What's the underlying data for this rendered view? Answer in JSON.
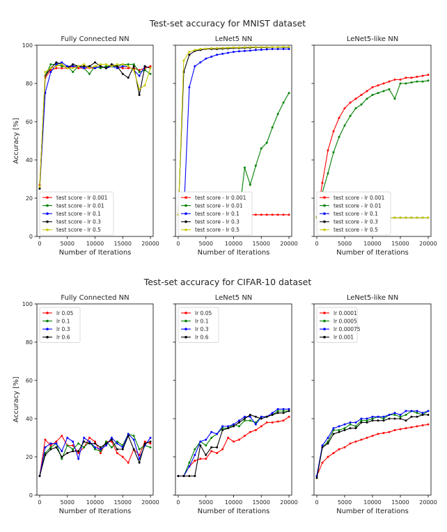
{
  "figure": {
    "mnist_title": "Test-set accuracy for MNIST dataset",
    "cifar_title": "Test-set accuracy for CIFAR-10 dataset"
  },
  "chart_data": [
    {
      "type": "line",
      "group": "mnist",
      "title": "Fully Connected NN",
      "xlabel": "Number of Iterations",
      "ylabel": "Accuracy [%]",
      "xlim": [
        -500,
        20500
      ],
      "ylim": [
        0,
        100
      ],
      "xticks": [
        0,
        5000,
        10000,
        15000,
        20000
      ],
      "yticks": [
        0,
        20,
        40,
        60,
        80,
        100
      ],
      "legend_position": "bottom-left",
      "x": [
        0,
        1000,
        2000,
        3000,
        4000,
        5000,
        6000,
        7000,
        8000,
        9000,
        10000,
        11000,
        12000,
        13000,
        14000,
        15000,
        16000,
        17000,
        18000,
        19000,
        20000
      ],
      "series": [
        {
          "name": "test score - lr 0.001",
          "color": "#ff0000",
          "values": [
            27,
            83,
            87,
            88,
            88,
            88,
            89,
            88,
            88,
            88,
            88,
            89,
            88,
            89,
            89,
            88,
            88,
            88,
            87,
            88,
            89
          ]
        },
        {
          "name": "test score - lr 0.01",
          "color": "#008000",
          "values": [
            26,
            84,
            90,
            90,
            89,
            89,
            86,
            89,
            88,
            85,
            89,
            88,
            89,
            89,
            89,
            90,
            90,
            90,
            86,
            87,
            85
          ]
        },
        {
          "name": "test score - lr 0.1",
          "color": "#0000ff",
          "values": [
            25,
            75,
            86,
            90,
            91,
            89,
            89,
            89,
            88,
            89,
            88,
            89,
            88,
            89,
            88,
            89,
            89,
            87,
            84,
            89,
            88
          ]
        },
        {
          "name": "test score - lr 0.3",
          "color": "#000000",
          "values": [
            25,
            84,
            88,
            91,
            90,
            88,
            90,
            89,
            89,
            89,
            91,
            89,
            88,
            90,
            89,
            85,
            83,
            89,
            74,
            89,
            88
          ]
        },
        {
          "name": "test score - lr 0.5",
          "color": "#c8c800",
          "values": [
            26,
            86,
            88,
            89,
            90,
            88,
            88,
            89,
            90,
            88,
            89,
            90,
            90,
            89,
            90,
            90,
            89,
            87,
            77,
            79,
            88
          ]
        }
      ]
    },
    {
      "type": "line",
      "group": "mnist",
      "title": "LeNet5 NN",
      "xlabel": "Number of Iterations",
      "ylabel": "",
      "xlim": [
        -500,
        20500
      ],
      "ylim": [
        0,
        100
      ],
      "xticks": [
        0,
        5000,
        10000,
        15000,
        20000
      ],
      "yticks": [
        0,
        20,
        40,
        60,
        80,
        100
      ],
      "legend_position": "bottom-left",
      "x": [
        0,
        1000,
        2000,
        3000,
        4000,
        5000,
        6000,
        7000,
        8000,
        9000,
        10000,
        11000,
        12000,
        13000,
        14000,
        15000,
        16000,
        17000,
        18000,
        19000,
        20000
      ],
      "series": [
        {
          "name": "test score - lr 0.001",
          "color": "#ff0000",
          "values": [
            11.35,
            11.35,
            11.35,
            11.35,
            11.35,
            11.35,
            11.35,
            11.35,
            11.35,
            11.35,
            11.35,
            11.35,
            11.35,
            11.35,
            11.35,
            11.35,
            11.35,
            11.35,
            11.35,
            11.35,
            11.35
          ]
        },
        {
          "name": "test score - lr 0.01",
          "color": "#008000",
          "values": [
            11.35,
            11.35,
            11.35,
            11.35,
            11.35,
            11.35,
            11.35,
            11.35,
            11.35,
            11.35,
            11.35,
            11.35,
            36,
            27,
            37,
            46,
            49,
            57,
            64,
            70,
            75
          ]
        },
        {
          "name": "test score - lr 0.1",
          "color": "#0000ff",
          "values": [
            11.35,
            11.35,
            78,
            89,
            91,
            93,
            94,
            95,
            95.5,
            96,
            96.5,
            96.8,
            97,
            97.2,
            97.5,
            97.6,
            97.8,
            98,
            98,
            98,
            98
          ]
        },
        {
          "name": "test score - lr 0.3",
          "color": "#000000",
          "values": [
            11.35,
            86,
            95,
            97,
            97.5,
            98,
            98,
            98,
            98.2,
            98.3,
            98.5,
            98.5,
            98.6,
            98.7,
            98.8,
            98.8,
            98.8,
            98.9,
            98.9,
            98.9,
            98.9
          ]
        },
        {
          "name": "test score - lr 0.5",
          "color": "#c8c800",
          "values": [
            11.35,
            92,
            96.5,
            97.5,
            98,
            98.2,
            98.4,
            98.5,
            98.6,
            98.7,
            98.8,
            98.8,
            98.9,
            99,
            99,
            99,
            99,
            99,
            99,
            99.1,
            99.1
          ]
        }
      ]
    },
    {
      "type": "line",
      "group": "mnist",
      "title": "LeNet5-like NN",
      "xlabel": "Number of Iterations",
      "ylabel": "",
      "xlim": [
        -500,
        20500
      ],
      "ylim": [
        0,
        100
      ],
      "xticks": [
        0,
        5000,
        10000,
        15000,
        20000
      ],
      "yticks": [
        0,
        20,
        40,
        60,
        80,
        100
      ],
      "legend_position": "bottom-left",
      "x": [
        0,
        1000,
        2000,
        3000,
        4000,
        5000,
        6000,
        7000,
        8000,
        9000,
        10000,
        11000,
        12000,
        13000,
        14000,
        15000,
        16000,
        17000,
        18000,
        19000,
        20000
      ],
      "series": [
        {
          "name": "test score - lr 0.001",
          "color": "#ff0000",
          "values": [
            10,
            28,
            45,
            55,
            62,
            67,
            70,
            72,
            74,
            76,
            78,
            79,
            80,
            81,
            82,
            82,
            83,
            83,
            83.5,
            84,
            84.5
          ]
        },
        {
          "name": "test score - lr 0.01",
          "color": "#008000",
          "values": [
            10,
            23,
            33,
            44,
            52,
            58,
            63,
            67,
            69,
            72,
            74,
            75,
            76,
            77,
            72,
            80,
            80,
            80.5,
            81,
            81,
            81.5
          ]
        },
        {
          "name": "test score - lr 0.1",
          "color": "#0000ff",
          "values": [
            9.8,
            9.8,
            9.8,
            9.8,
            9.8,
            9.8,
            9.8,
            9.8,
            9.8,
            9.8,
            9.8,
            9.8,
            9.8,
            9.8,
            9.8,
            9.8,
            9.8,
            9.8,
            9.8,
            9.8,
            9.8
          ]
        },
        {
          "name": "test score - lr 0.3",
          "color": "#000000",
          "values": [
            9.8,
            9.8,
            9.8,
            9.8,
            9.8,
            9.8,
            9.8,
            9.8,
            9.8,
            9.8,
            9.8,
            9.8,
            9.8,
            9.8,
            9.8,
            9.8,
            9.8,
            9.8,
            9.8,
            9.8,
            9.8
          ]
        },
        {
          "name": "test score - lr 0.5",
          "color": "#c8c800",
          "values": [
            9.8,
            9.8,
            9.8,
            9.8,
            9.8,
            9.8,
            9.8,
            9.8,
            9.8,
            9.8,
            9.8,
            9.8,
            9.8,
            9.8,
            9.8,
            9.8,
            9.8,
            9.8,
            9.8,
            9.8,
            9.8
          ]
        }
      ]
    },
    {
      "type": "line",
      "group": "cifar",
      "title": "Fully Connected NN",
      "xlabel": "Number of Iterations",
      "ylabel": "Accuracy [%]",
      "xlim": [
        -500,
        20500
      ],
      "ylim": [
        0,
        100
      ],
      "xticks": [
        0,
        5000,
        10000,
        15000,
        20000
      ],
      "yticks": [
        0,
        20,
        40,
        60,
        80,
        100
      ],
      "legend_position": "top-left",
      "x": [
        0,
        1000,
        2000,
        3000,
        4000,
        5000,
        6000,
        7000,
        8000,
        9000,
        10000,
        11000,
        12000,
        13000,
        14000,
        15000,
        16000,
        17000,
        18000,
        19000,
        20000
      ],
      "series": [
        {
          "name": "lr 0.05",
          "color": "#ff0000",
          "values": [
            10,
            29,
            26,
            28,
            31,
            26,
            26,
            22,
            25,
            30,
            28,
            22,
            28,
            28,
            22,
            20,
            17,
            24,
            21,
            28,
            27
          ]
        },
        {
          "name": "lr 0.1",
          "color": "#008000",
          "values": [
            10,
            22,
            25,
            27,
            19,
            26,
            24,
            27,
            25,
            28,
            24,
            23,
            28,
            25,
            28,
            26,
            32,
            31,
            24,
            26,
            25
          ]
        },
        {
          "name": "lr 0.3",
          "color": "#0000ff",
          "values": [
            10,
            25,
            27,
            27,
            23,
            30,
            28,
            19,
            30,
            28,
            25,
            24,
            26,
            30,
            27,
            25,
            32,
            29,
            19,
            26,
            30
          ]
        },
        {
          "name": "lr 0.6",
          "color": "#000000",
          "values": [
            10,
            21,
            24,
            25,
            20,
            22,
            23,
            23,
            28,
            27,
            27,
            25,
            27,
            29,
            24,
            24,
            31,
            24,
            17,
            27,
            28
          ]
        }
      ]
    },
    {
      "type": "line",
      "group": "cifar",
      "title": "LeNet5 NN",
      "xlabel": "Number of Iterations",
      "ylabel": "",
      "xlim": [
        -500,
        20500
      ],
      "ylim": [
        0,
        100
      ],
      "xticks": [
        0,
        5000,
        10000,
        15000,
        20000
      ],
      "yticks": [
        0,
        20,
        40,
        60,
        80,
        100
      ],
      "legend_position": "top-left",
      "x": [
        0,
        1000,
        2000,
        3000,
        4000,
        5000,
        6000,
        7000,
        8000,
        9000,
        10000,
        11000,
        12000,
        13000,
        14000,
        15000,
        16000,
        17000,
        18000,
        19000,
        20000
      ],
      "series": [
        {
          "name": "lr 0.05",
          "color": "#ff0000",
          "values": [
            10,
            10,
            15,
            18,
            19,
            19,
            23,
            22,
            24,
            30,
            28,
            29,
            31,
            33,
            34,
            36,
            38,
            38,
            38.5,
            39,
            41
          ]
        },
        {
          "name": "lr 0.1",
          "color": "#008000",
          "values": [
            10,
            10,
            17,
            24,
            28,
            26,
            30,
            32,
            35,
            35,
            37,
            36,
            39,
            39,
            38,
            41,
            41,
            42,
            44,
            44,
            44
          ]
        },
        {
          "name": "lr 0.3",
          "color": "#0000ff",
          "values": [
            10,
            10,
            15,
            21,
            28,
            29,
            33,
            32,
            36,
            36,
            37,
            39,
            41,
            41,
            37,
            41,
            41,
            43,
            45,
            45,
            45
          ]
        },
        {
          "name": "lr 0.6",
          "color": "#000000",
          "values": [
            10,
            10,
            10,
            10,
            26,
            21,
            25,
            25,
            34,
            35,
            36,
            38,
            40,
            42,
            41,
            40,
            41,
            42,
            43,
            43,
            44
          ]
        }
      ]
    },
    {
      "type": "line",
      "group": "cifar",
      "title": "LeNet5-like NN",
      "xlabel": "Number of Iterations",
      "ylabel": "",
      "xlim": [
        -500,
        20500
      ],
      "ylim": [
        0,
        100
      ],
      "xticks": [
        0,
        5000,
        10000,
        15000,
        20000
      ],
      "yticks": [
        0,
        20,
        40,
        60,
        80,
        100
      ],
      "legend_position": "top-left",
      "x": [
        0,
        1000,
        2000,
        3000,
        4000,
        5000,
        6000,
        7000,
        8000,
        9000,
        10000,
        11000,
        12000,
        13000,
        14000,
        15000,
        16000,
        17000,
        18000,
        19000,
        20000
      ],
      "series": [
        {
          "name": "lr 0.0001",
          "color": "#ff0000",
          "values": [
            10,
            17,
            20,
            22,
            24,
            25,
            27,
            28,
            29,
            30,
            31,
            32,
            32.5,
            33,
            34,
            34.5,
            35,
            35.5,
            36,
            36.5,
            37
          ]
        },
        {
          "name": "lr 0.0005",
          "color": "#008000",
          "values": [
            10,
            25,
            28,
            34,
            34,
            35,
            37,
            36,
            39,
            39,
            40,
            41,
            40,
            42,
            42,
            41,
            42,
            44,
            43,
            42,
            44
          ]
        },
        {
          "name": "lr 0.00075",
          "color": "#0000ff",
          "values": [
            10,
            26,
            30,
            35,
            36,
            37,
            38,
            38,
            40,
            40,
            41,
            41,
            41,
            42,
            43,
            42,
            44,
            44,
            44,
            43,
            44
          ]
        },
        {
          "name": "lr 0.001",
          "color": "#000000",
          "values": [
            9,
            25,
            27,
            32,
            33,
            34,
            35,
            35,
            38,
            38,
            39,
            39,
            39,
            40,
            40,
            40,
            39,
            41,
            41,
            42,
            42
          ]
        }
      ]
    }
  ]
}
